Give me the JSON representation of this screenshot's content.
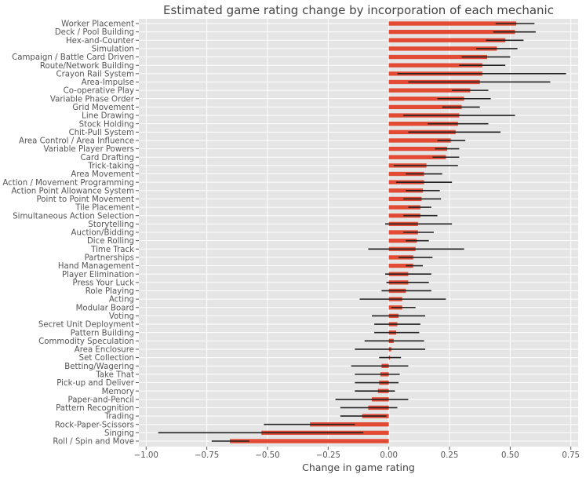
{
  "chart_data": {
    "type": "bar",
    "orientation": "horizontal",
    "title": "Estimated game rating change by incorporation of each mechanic",
    "xlabel": "Change in game rating",
    "ylabel": "",
    "xlim": [
      -1.03,
      0.78
    ],
    "xticks": [
      -1.0,
      -0.75,
      -0.5,
      -0.25,
      0.0,
      0.25,
      0.5,
      0.75
    ],
    "xtick_labels": [
      "−1.00",
      "−0.75",
      "−0.50",
      "−0.25",
      "0.00",
      "0.25",
      "0.50",
      "0.75"
    ],
    "grid": true,
    "bar_color": "#e24a33",
    "errorbar_color": "#222222",
    "background_color": "#e5e5e5",
    "categories": [
      "Worker Placement",
      "Deck / Pool Building",
      "Hex-and-Counter",
      "Simulation",
      "Campaign / Battle Card Driven",
      "Route/Network Building",
      "Crayon Rail System",
      "Area-Impulse",
      "Co-operative Play",
      "Variable Phase Order",
      "Grid Movement",
      "Line Drawing",
      "Stock Holding",
      "Chit-Pull System",
      "Area Control / Area Influence",
      "Variable Player Powers",
      "Card Drafting",
      "Trick-taking",
      "Area Movement",
      "Action / Movement Programming",
      "Action Point Allowance System",
      "Point to Point Movement",
      "Tile Placement",
      "Simultaneous Action Selection",
      "Storytelling",
      "Auction/Bidding",
      "Dice Rolling",
      "Time Track",
      "Partnerships",
      "Hand Management",
      "Player Elimination",
      "Press Your Luck",
      "Role Playing",
      "Acting",
      "Modular Board",
      "Voting",
      "Secret Unit Deployment",
      "Pattern Building",
      "Commodity Speculation",
      "Area Enclosure",
      "Set Collection",
      "Betting/Wagering",
      "Take That",
      "Pick-up and Deliver",
      "Memory",
      "Paper-and-Pencil",
      "Pattern Recognition",
      "Trading",
      "Rock-Paper-Scissors",
      "Singing",
      "Roll / Spin and Move"
    ],
    "values": [
      0.525,
      0.52,
      0.48,
      0.445,
      0.405,
      0.385,
      0.385,
      0.375,
      0.335,
      0.31,
      0.3,
      0.29,
      0.285,
      0.275,
      0.255,
      0.24,
      0.235,
      0.155,
      0.145,
      0.145,
      0.14,
      0.135,
      0.13,
      0.13,
      0.12,
      0.12,
      0.115,
      0.11,
      0.1,
      0.1,
      0.08,
      0.08,
      0.07,
      0.055,
      0.055,
      0.04,
      0.035,
      0.03,
      0.02,
      0.01,
      0.005,
      -0.03,
      -0.035,
      -0.04,
      -0.045,
      -0.07,
      -0.085,
      -0.11,
      -0.325,
      -0.525,
      -0.655
    ],
    "error_low": [
      0.44,
      0.43,
      0.4,
      0.36,
      0.3,
      0.29,
      0.035,
      0.08,
      0.26,
      0.2,
      0.22,
      0.06,
      0.16,
      0.08,
      0.2,
      0.19,
      0.18,
      0.02,
      0.07,
      0.03,
      0.07,
      0.06,
      0.08,
      0.06,
      -0.015,
      0.06,
      0.07,
      -0.085,
      0.04,
      0.07,
      -0.015,
      -0.01,
      -0.03,
      -0.12,
      0.01,
      -0.07,
      -0.06,
      -0.06,
      -0.1,
      -0.14,
      -0.04,
      -0.155,
      -0.14,
      -0.14,
      -0.14,
      -0.22,
      -0.2,
      -0.2,
      -0.515,
      -0.95,
      -0.73
    ],
    "error_high": [
      0.6,
      0.605,
      0.555,
      0.53,
      0.5,
      0.48,
      0.73,
      0.665,
      0.41,
      0.42,
      0.375,
      0.52,
      0.41,
      0.46,
      0.315,
      0.29,
      0.29,
      0.285,
      0.22,
      0.26,
      0.21,
      0.215,
      0.175,
      0.2,
      0.26,
      0.185,
      0.165,
      0.31,
      0.18,
      0.14,
      0.175,
      0.165,
      0.175,
      0.235,
      0.11,
      0.15,
      0.13,
      0.125,
      0.145,
      0.15,
      0.05,
      0.08,
      0.045,
      0.04,
      0.025,
      0.08,
      0.035,
      -0.01,
      -0.14,
      -0.105,
      -0.575
    ]
  }
}
